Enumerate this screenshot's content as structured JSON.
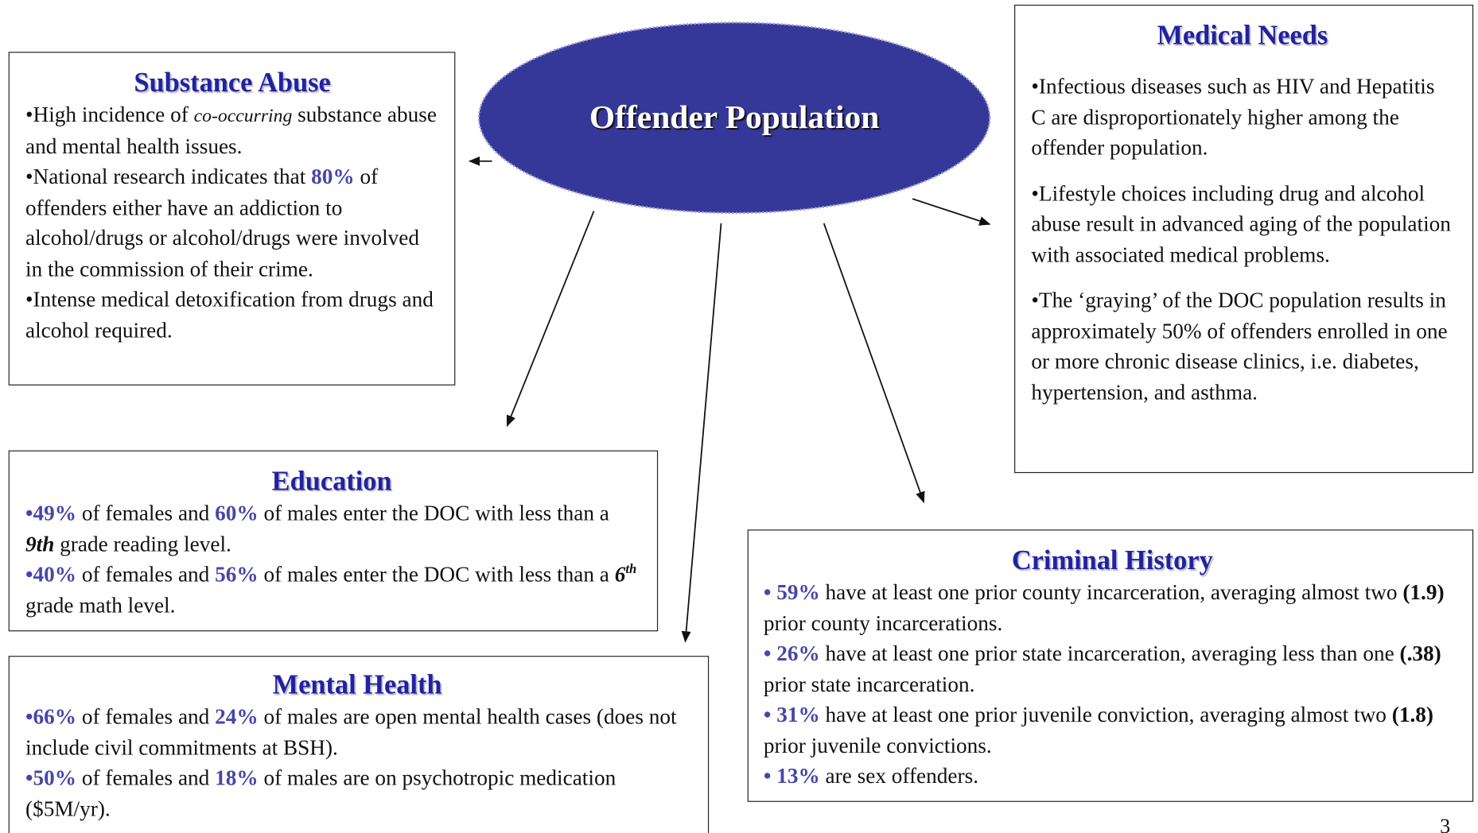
{
  "title": "Offender Population",
  "substance_abuse": {
    "title": "Substance Abuse",
    "items": [
      [
        "•High incidence of ",
        "co-occurring",
        " substance abuse and mental health issues."
      ],
      [
        "•National research indicates that ",
        "80%",
        " of offenders either have an addiction to alcohol/drugs or alcohol/drugs were involved in the commission of their crime."
      ],
      [
        "•Intense medical detoxification from drugs and alcohol required."
      ]
    ]
  },
  "medical_needs": {
    "title": "Medical Needs",
    "items": [
      [
        "•Infectious diseases such as HIV and Hepatitis C are disproportionately higher among the offender population."
      ],
      [
        "•Lifestyle choices including drug and alcohol abuse result in advanced aging of the population with associated medical problems."
      ],
      [
        "•The ‘graying’ of the DOC population results in approximately 50% of offenders enrolled in one or more chronic disease clinics, i.e. diabetes, hypertension, and asthma."
      ]
    ]
  },
  "education": {
    "title": "Education",
    "items": [
      [
        "•49%",
        " of females and ",
        "60%",
        " of males enter the DOC with less than a ",
        "9th",
        " grade reading level."
      ],
      [
        "•40%",
        " of females and ",
        "56%",
        " of males enter the DOC with less than a ",
        "6",
        "th",
        " grade math level."
      ]
    ]
  },
  "mental_health": {
    "title": "Mental Health",
    "items": [
      [
        "•66%",
        " of females and ",
        "24%",
        " of males are open mental health cases (does not  include civil commitments at BSH)."
      ],
      [
        "•50%",
        " of females and ",
        "18%",
        " of males are on psychotropic medication ($5M/yr)."
      ]
    ]
  },
  "criminal_history": {
    "title": "Criminal History",
    "items": [
      [
        "• 59%",
        " have at least one prior county incarceration, averaging almost two ",
        "(1.9)",
        " prior county incarcerations."
      ],
      [
        "• 26%",
        " have at least one prior state incarceration, averaging less than one ",
        "(.38)",
        " prior state incarceration."
      ],
      [
        "• 31%",
        " have at least one prior juvenile conviction, averaging almost two ",
        "(1.8)",
        " prior juvenile convictions."
      ],
      [
        "• 13%",
        " are sex offenders."
      ]
    ]
  },
  "page_number": "3"
}
